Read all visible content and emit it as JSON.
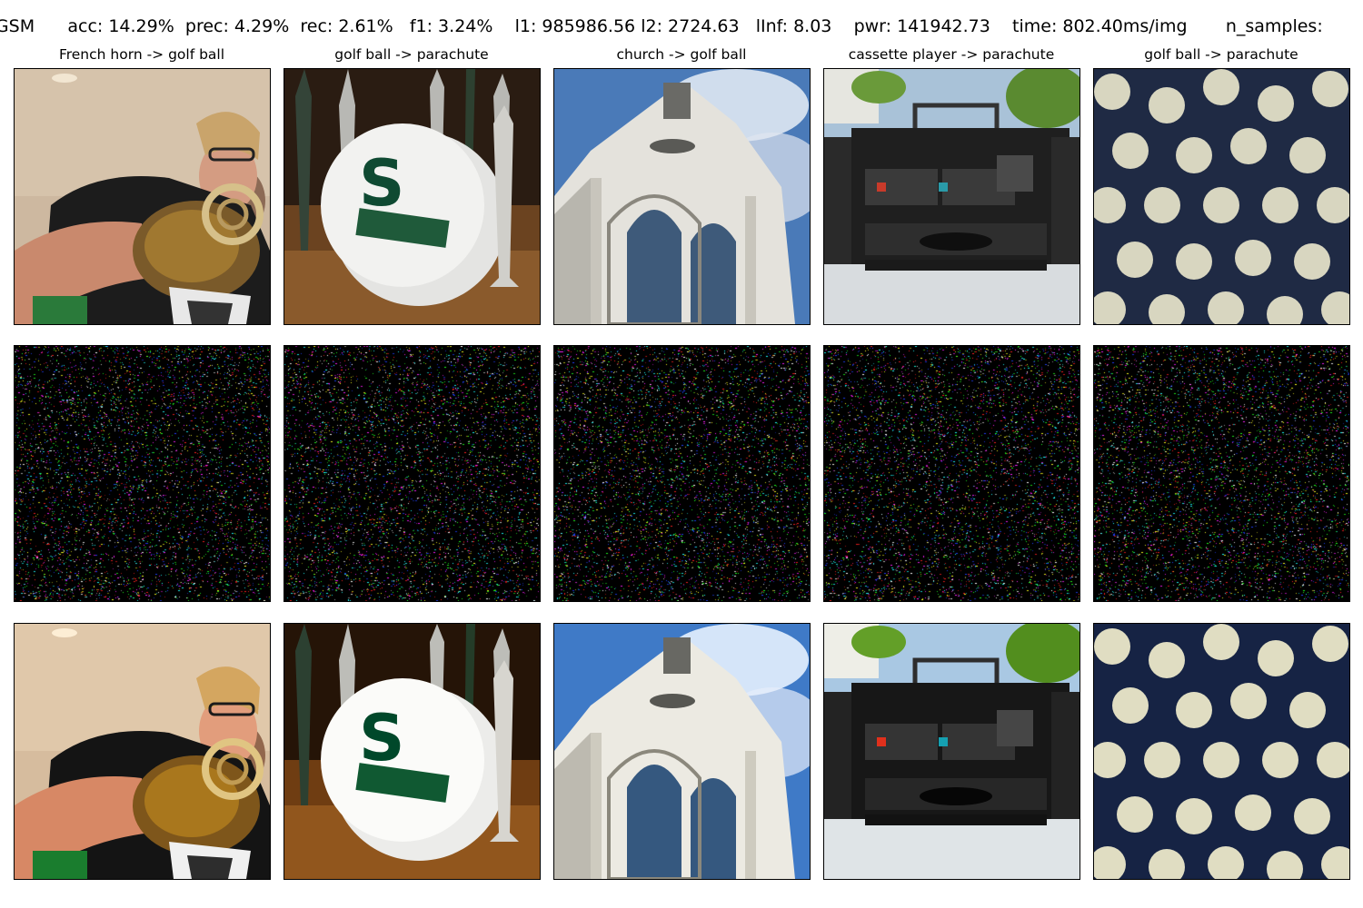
{
  "header": {
    "method": "FGSM",
    "acc": "acc: 14.29%",
    "prec": "prec: 4.29%",
    "rec": "rec: 2.61%",
    "f1": "f1: 3.24%",
    "l1": "l1: 985986.56",
    "l2": "l2: 2724.63",
    "linf": "lInf: 8.03",
    "pwr": "pwr: 141942.73",
    "time": "time: 802.40ms/img",
    "n_samples": "n_samples:"
  },
  "columns": [
    {
      "title": "French horn -> golf ball",
      "image": "man-playing-french-horn"
    },
    {
      "title": "golf ball -> parachute",
      "image": "golf-ball-with-tees"
    },
    {
      "title": "church -> golf ball",
      "image": "church-tower"
    },
    {
      "title": "cassette player -> parachute",
      "image": "boombox-cassette-player"
    },
    {
      "title": "golf ball -> parachute",
      "image": "many-golf-balls"
    }
  ],
  "rows": [
    "original",
    "perturbation",
    "adversarial"
  ]
}
